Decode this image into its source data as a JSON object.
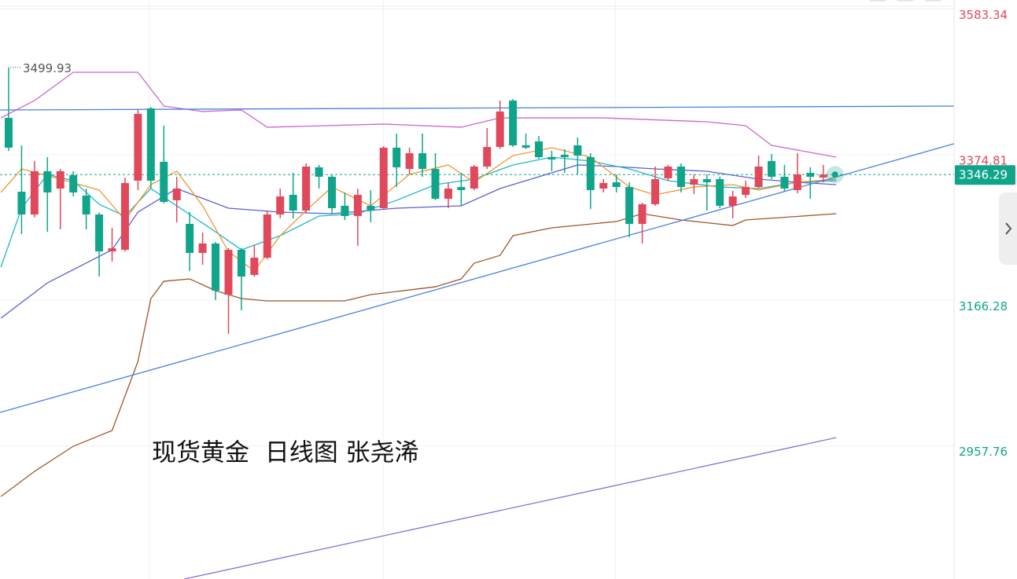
{
  "chart_data": {
    "type": "candlestick",
    "title": "现货黄金  日线图 张尧浠",
    "ylim": [
      2767.2,
      3596.3
    ],
    "yticks": [
      3583.34,
      3374.81,
      3166.28,
      2957.76
    ],
    "grid": true,
    "up_color": "#e0495b",
    "down_color": "#10a58a",
    "candles": {
      "open": [
        3427.5,
        3321.8,
        3289.2,
        3351.1,
        3326.3,
        3345.4,
        3316.2,
        3289.2,
        3236.3,
        3238.6,
        3337.6,
        3441.1,
        3364.6,
        3309.5,
        3275.7,
        3234.1,
        3247.6,
        3174.4,
        3238.6,
        3202.6,
        3227.3,
        3289.2,
        3317.3,
        3294.8,
        3356.7,
        3343.2,
        3301.6,
        3286.9,
        3301.6,
        3298.2,
        3384.8,
        3354.4,
        3376.9,
        3354.4,
        3311.7,
        3328.5,
        3326.3,
        3357.8,
        3385.9,
        3452.3,
        3388.2,
        3393.8,
        3371.3,
        3374.7,
        3388.2,
        3371.3,
        3326.3,
        3335.3,
        3328.5,
        3275.7,
        3303.8,
        3340.9,
        3357.8,
        3331.9,
        3339.8,
        3339.8,
        3301.6,
        3317.3,
        3328.5,
        3365.7,
        3343.2,
        3324.1,
        3348.8,
        3342.1
      ],
      "high": [
        3499.93,
        3388.2,
        3365.7,
        3371.3,
        3354.4,
        3351.1,
        3326.3,
        3292,
        3270.1,
        3342.1,
        3438.8,
        3443,
        3416.3,
        3343.2,
        3292.6,
        3263.3,
        3250,
        3241,
        3241,
        3245.3,
        3294.8,
        3326.3,
        3348.8,
        3362.3,
        3360.1,
        3346.6,
        3320.7,
        3326.3,
        3324.1,
        3387,
        3405.1,
        3384.8,
        3405.1,
        3376.9,
        3335.3,
        3348.8,
        3360.1,
        3412.9,
        3452.3,
        3454.6,
        3405.1,
        3401.7,
        3380.3,
        3382.6,
        3399.4,
        3376.9,
        3339.8,
        3346.6,
        3335.3,
        3306.1,
        3357.8,
        3360.1,
        3362.3,
        3346.6,
        3346.6,
        3343.2,
        3322.9,
        3337.6,
        3373.5,
        3375.8,
        3360.1,
        3376.9,
        3356.7,
        3360.1
      ],
      "low": [
        3380,
        3261.0,
        3285,
        3264.4,
        3267.8,
        3315.0,
        3267.8,
        3200.3,
        3221.7,
        3236,
        3324.1,
        3326.3,
        3305,
        3277.9,
        3208.2,
        3217.2,
        3166.6,
        3118.2,
        3151.9,
        3200,
        3224.8,
        3283.6,
        3283.6,
        3292,
        3326.3,
        3290.3,
        3281.3,
        3244.2,
        3277.9,
        3296,
        3328.5,
        3346.6,
        3343.2,
        3309.5,
        3298.2,
        3301.6,
        3324,
        3354.4,
        3383,
        3385.9,
        3382.6,
        3369,
        3351.1,
        3348.8,
        3346.6,
        3297.1,
        3320.7,
        3320.7,
        3256.6,
        3247.6,
        3301.6,
        3337.6,
        3320.7,
        3318.4,
        3294.8,
        3298.2,
        3283.6,
        3312.8,
        3326.3,
        3339.8,
        3322.9,
        3319.5,
        3311.7,
        3335.3
      ],
      "close": [
        3384.8,
        3289.2,
        3351.1,
        3320.7,
        3351.1,
        3320.7,
        3289.2,
        3236.3,
        3240.8,
        3334.2,
        3433.2,
        3337.6,
        3307.2,
        3326.3,
        3234.1,
        3247.6,
        3180.1,
        3238.6,
        3200.3,
        3227.3,
        3289.2,
        3315.0,
        3294.8,
        3357.8,
        3343.2,
        3298.2,
        3286.9,
        3317.3,
        3294.8,
        3384.8,
        3356.7,
        3376.9,
        3354.4,
        3311.7,
        3326.3,
        3324.1,
        3357.8,
        3385.9,
        3436.6,
        3388.2,
        3384.8,
        3371.3,
        3367.9,
        3371.3,
        3373.5,
        3324.1,
        3334.2,
        3328.5,
        3275.7,
        3303.8,
        3339.8,
        3357.8,
        3328.5,
        3339.8,
        3335.3,
        3301.6,
        3315.0,
        3328.5,
        3357.8,
        3343.2,
        3326.3,
        3346.6,
        3343.2,
        3346.29
      ]
    },
    "lines": [
      {
        "color": "#cc66cc",
        "x": [
          -0.6,
          2,
          5,
          10,
          12,
          15,
          18,
          20,
          29,
          35,
          38,
          46,
          54,
          57,
          59,
          64
        ],
        "values": [
          3427.5,
          3452.3,
          3492.8,
          3492.8,
          3444.4,
          3436.6,
          3438.8,
          3414.1,
          3418.6,
          3414.1,
          3427.5,
          3427.5,
          3421.9,
          3416.3,
          3388.2,
          3371.3
        ]
      },
      {
        "color": "#a0562c",
        "x": [
          -0.6,
          2,
          5,
          8,
          10,
          11,
          12,
          14,
          16,
          18,
          20,
          26,
          28,
          33,
          35,
          36,
          38,
          39,
          42,
          47,
          49,
          52,
          56,
          57,
          64
        ],
        "values": [
          2885.3,
          2921.3,
          2957.3,
          2979.8,
          3078.8,
          3168.8,
          3193.5,
          3196.9,
          3180.1,
          3168.8,
          3165.4,
          3165.4,
          3174.4,
          3185.6,
          3196.9,
          3219.4,
          3230.6,
          3258.8,
          3270.1,
          3279.1,
          3290.3,
          3281.3,
          3273.4,
          3281.3,
          3290.3
        ]
      },
      {
        "color": "#5a5fd6",
        "x": [
          -0.6,
          3,
          8,
          10,
          13,
          17,
          21,
          25,
          30,
          35,
          38,
          41,
          44,
          47,
          50,
          54,
          58,
          61,
          64
        ],
        "values": [
          3140.7,
          3191.3,
          3238.6,
          3292.6,
          3326.3,
          3298.2,
          3292.6,
          3290.3,
          3298.2,
          3301.6,
          3326.3,
          3343.2,
          3360.1,
          3357.8,
          3354.4,
          3351.1,
          3339.8,
          3335.3,
          3331.9
        ]
      },
      {
        "color": "#1fb8c8",
        "x": [
          -0.6,
          1,
          3,
          5,
          7,
          9,
          11,
          13,
          16,
          18,
          21,
          24,
          27,
          30,
          33,
          36,
          39,
          42,
          45,
          48,
          51,
          55,
          58,
          61,
          64
        ],
        "values": [
          3213.8,
          3298.2,
          3346.6,
          3337.6,
          3303.8,
          3286.9,
          3326.3,
          3301.6,
          3264.4,
          3238.6,
          3258.8,
          3286.9,
          3290.3,
          3309.5,
          3331.9,
          3339.8,
          3360.1,
          3371.3,
          3365.7,
          3354.4,
          3337.6,
          3328.5,
          3326.3,
          3335.3,
          3337.6
        ]
      },
      {
        "color": "#f0962c",
        "x": [
          -0.6,
          1,
          4,
          7,
          9,
          11,
          13,
          15,
          17,
          19,
          21,
          23,
          25,
          28,
          31,
          34,
          36,
          39,
          42,
          45,
          48,
          50,
          53,
          56,
          58,
          61,
          64
        ],
        "values": [
          3320.7,
          3354.4,
          3339.8,
          3324.1,
          3281.3,
          3331.9,
          3351.1,
          3301.6,
          3236.3,
          3208.2,
          3258.8,
          3294.8,
          3328.5,
          3301.6,
          3346.6,
          3360.1,
          3335.3,
          3373.5,
          3384.8,
          3371.3,
          3328.5,
          3317.3,
          3328.5,
          3331.9,
          3324.1,
          3335.3,
          3339.8
        ]
      },
      {
        "color": "#4a7fe0",
        "x": [
          -0.67,
          73.1
        ],
        "values": [
          3438.8,
          3444.4
        ]
      },
      {
        "color": "#4a7fe0",
        "x": [
          -0.67,
          73.1
        ],
        "values": [
          3005.7,
          3390.4
        ]
      },
      {
        "color": "#8a6fd6",
        "x": [
          13.6,
          64
        ],
        "values": [
          2767.2,
          2969.7
        ]
      }
    ]
  }
}
